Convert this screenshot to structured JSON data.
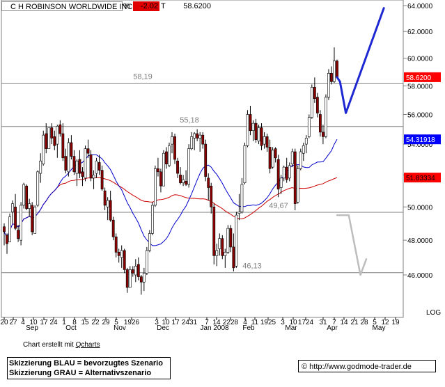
{
  "header": {
    "name": "C H ROBINSON WORLDWIDE INC",
    "pct_label": "%",
    "pct_value": "-2.02",
    "t_label": "T",
    "price": "58.6200"
  },
  "chart_data": {
    "type": "candlestick",
    "y_axis": {
      "side": "right",
      "ylim": [
        43.5,
        64.5
      ],
      "ticks": [
        "64.0000",
        "62.0000",
        "60.0000",
        "58.0000",
        "56.0000",
        "54.0000",
        "52.0000",
        "50.0000",
        "48.0000",
        "46.0000"
      ],
      "scale_label": "LOG",
      "grid": false
    },
    "x_axis": {
      "day_ticks": [
        "20",
        "27",
        "4",
        "10",
        "17",
        "24",
        "1",
        "8",
        "15",
        "22",
        "29",
        "5",
        "1926",
        "3",
        "10",
        "17",
        "2431",
        "7",
        "14",
        "2228",
        "4",
        "11",
        "1925",
        "3",
        "10",
        "1724",
        "31",
        "7",
        "14",
        "21",
        "28",
        "5",
        "12",
        "19"
      ],
      "month_labels": [
        "Sep",
        "Oct",
        "Nov",
        "Dec",
        "Jan 2008",
        "Feb",
        "Mar",
        "Apr",
        "May"
      ]
    },
    "levels": [
      {
        "value": 58.19,
        "label": "58,19"
      },
      {
        "value": 55.18,
        "label": "55,18"
      },
      {
        "value": 49.67,
        "label": "49,67"
      },
      {
        "value": 46.13,
        "label": "46,13"
      }
    ],
    "price_tags": [
      {
        "value": 58.62,
        "label": "58.6200",
        "bg": "#ff0000",
        "fg": "#ffffff"
      },
      {
        "value": 54.31918,
        "label": "54.31918",
        "bg": "#0000ff",
        "fg": "#ffffff"
      },
      {
        "value": 51.83334,
        "label": "51.83334",
        "bg": "#ff0000",
        "fg": "#000000"
      }
    ],
    "ohlc": [
      [
        48.8,
        49.0,
        47.7,
        48.5
      ],
      [
        48.3,
        48.4,
        47.2,
        47.8
      ],
      [
        47.9,
        49.6,
        47.9,
        49.4
      ],
      [
        49.7,
        50.4,
        49.0,
        50.2
      ],
      [
        50.0,
        50.8,
        48.6,
        48.7
      ],
      [
        48.6,
        48.9,
        47.9,
        48.1
      ],
      [
        48.0,
        50.3,
        47.7,
        50.1
      ],
      [
        50.1,
        51.5,
        49.9,
        51.4
      ],
      [
        51.3,
        51.4,
        49.8,
        49.9
      ],
      [
        49.9,
        50.5,
        49.4,
        50.2
      ],
      [
        50.1,
        50.3,
        48.3,
        48.5
      ],
      [
        48.4,
        50.1,
        48.4,
        50.0
      ],
      [
        50.1,
        52.3,
        50.0,
        52.2
      ],
      [
        52.1,
        53.4,
        51.5,
        52.9
      ],
      [
        52.7,
        54.9,
        52.6,
        54.6
      ],
      [
        54.7,
        55.4,
        53.4,
        53.7
      ],
      [
        53.7,
        55.1,
        53.7,
        55.1
      ],
      [
        55.1,
        55.4,
        54.0,
        54.4
      ],
      [
        54.5,
        54.9,
        53.6,
        53.9
      ],
      [
        54.0,
        55.3,
        53.1,
        55.2
      ],
      [
        55.3,
        55.6,
        54.5,
        54.7
      ],
      [
        54.7,
        55.4,
        52.9,
        53.1
      ],
      [
        53.2,
        53.7,
        52.1,
        52.3
      ],
      [
        52.2,
        54.4,
        51.9,
        54.1
      ],
      [
        54.1,
        54.6,
        53.0,
        53.2
      ],
      [
        53.2,
        53.6,
        52.0,
        52.2
      ],
      [
        52.1,
        53.0,
        51.3,
        52.9
      ],
      [
        53.0,
        53.6,
        51.8,
        52.1
      ],
      [
        52.2,
        52.5,
        51.3,
        51.9
      ],
      [
        51.8,
        53.9,
        51.6,
        53.7
      ],
      [
        53.7,
        54.3,
        53.1,
        53.4
      ],
      [
        53.3,
        53.6,
        51.6,
        51.8
      ],
      [
        51.8,
        52.3,
        51.1,
        52.0
      ],
      [
        52.1,
        53.1,
        51.8,
        52.9
      ],
      [
        52.8,
        53.3,
        52.0,
        52.3
      ],
      [
        52.3,
        52.6,
        51.0,
        51.1
      ],
      [
        51.0,
        51.2,
        49.8,
        50.1
      ],
      [
        50.0,
        50.6,
        49.2,
        50.4
      ],
      [
        50.4,
        51.0,
        49.1,
        49.2
      ],
      [
        49.2,
        49.4,
        48.0,
        48.2
      ],
      [
        48.2,
        48.4,
        47.0,
        47.3
      ],
      [
        47.3,
        47.5,
        46.7,
        47.1
      ],
      [
        47.0,
        47.7,
        46.4,
        47.4
      ],
      [
        47.4,
        47.5,
        46.1,
        46.3
      ],
      [
        46.3,
        46.4,
        45.0,
        45.3
      ],
      [
        45.3,
        46.5,
        45.3,
        46.3
      ],
      [
        46.3,
        46.5,
        45.9,
        46.1
      ],
      [
        46.0,
        46.9,
        45.6,
        46.5
      ],
      [
        46.6,
        47.0,
        45.7,
        45.9
      ],
      [
        45.9,
        46.0,
        44.9,
        45.6
      ],
      [
        45.6,
        46.4,
        45.1,
        46.1
      ],
      [
        46.1,
        47.6,
        46.0,
        47.4
      ],
      [
        47.4,
        48.6,
        47.3,
        48.4
      ],
      [
        48.4,
        50.3,
        48.3,
        50.1
      ],
      [
        50.1,
        52.6,
        50.0,
        52.4
      ],
      [
        52.4,
        53.1,
        51.9,
        52.2
      ],
      [
        52.2,
        52.4,
        50.9,
        51.3
      ],
      [
        51.3,
        53.6,
        51.3,
        53.4
      ],
      [
        53.5,
        53.8,
        52.4,
        52.7
      ],
      [
        52.6,
        54.1,
        52.5,
        53.9
      ],
      [
        54.0,
        54.8,
        53.4,
        54.5
      ],
      [
        54.5,
        54.7,
        52.7,
        53.0
      ],
      [
        52.9,
        53.1,
        51.8,
        52.1
      ],
      [
        52.0,
        52.5,
        51.4,
        51.5
      ],
      [
        51.5,
        52.0,
        51.3,
        51.7
      ],
      [
        51.6,
        52.3,
        51.3,
        51.4
      ],
      [
        51.4,
        54.0,
        51.2,
        53.7
      ],
      [
        53.7,
        54.8,
        53.6,
        54.5
      ],
      [
        54.4,
        54.8,
        53.6,
        54.7
      ],
      [
        54.7,
        55.0,
        54.2,
        54.4
      ],
      [
        54.4,
        54.8,
        53.5,
        54.6
      ],
      [
        54.6,
        54.8,
        53.7,
        54.0
      ],
      [
        54.0,
        54.3,
        51.6,
        51.9
      ],
      [
        51.8,
        52.1,
        50.4,
        51.2
      ],
      [
        51.3,
        51.5,
        49.6,
        50.0
      ],
      [
        50.0,
        50.2,
        46.6,
        47.1
      ],
      [
        47.1,
        47.8,
        46.5,
        47.4
      ],
      [
        47.5,
        48.4,
        47.1,
        48.1
      ],
      [
        48.1,
        48.3,
        46.9,
        47.1
      ],
      [
        47.1,
        47.5,
        46.4,
        47.3
      ],
      [
        47.3,
        48.9,
        47.2,
        48.7
      ],
      [
        48.7,
        48.9,
        47.3,
        47.6
      ],
      [
        47.6,
        48.4,
        46.2,
        46.4
      ],
      [
        46.5,
        49.7,
        46.4,
        49.5
      ],
      [
        49.6,
        50.8,
        49.2,
        49.7
      ],
      [
        49.7,
        51.8,
        49.6,
        51.4
      ],
      [
        51.5,
        54.1,
        51.4,
        53.9
      ],
      [
        53.9,
        56.3,
        53.8,
        56.0
      ],
      [
        56.0,
        56.6,
        54.6,
        54.9
      ],
      [
        54.9,
        55.6,
        54.2,
        55.4
      ],
      [
        55.4,
        55.7,
        54.1,
        54.3
      ],
      [
        54.2,
        55.3,
        54.0,
        55.1
      ],
      [
        55.1,
        55.4,
        53.6,
        53.9
      ],
      [
        54.0,
        54.8,
        53.7,
        54.5
      ],
      [
        54.5,
        54.7,
        53.5,
        53.8
      ],
      [
        53.8,
        54.3,
        52.1,
        52.4
      ],
      [
        52.5,
        53.8,
        52.4,
        53.6
      ],
      [
        53.7,
        53.8,
        52.8,
        53.1
      ],
      [
        53.0,
        53.3,
        50.6,
        51.1
      ],
      [
        51.2,
        52.0,
        50.8,
        51.8
      ],
      [
        51.8,
        52.6,
        51.6,
        52.5
      ],
      [
        52.5,
        53.1,
        51.5,
        51.7
      ],
      [
        51.8,
        52.8,
        51.6,
        52.6
      ],
      [
        52.7,
        53.7,
        52.5,
        53.5
      ],
      [
        53.5,
        53.7,
        49.8,
        50.2
      ],
      [
        50.3,
        52.6,
        50.2,
        52.4
      ],
      [
        52.4,
        53.7,
        52.3,
        53.5
      ],
      [
        53.4,
        54.1,
        52.9,
        53.9
      ],
      [
        54.0,
        54.6,
        53.4,
        54.4
      ],
      [
        54.5,
        56.0,
        54.4,
        55.8
      ],
      [
        55.8,
        58.1,
        55.7,
        57.9
      ],
      [
        57.9,
        58.6,
        56.8,
        57.1
      ],
      [
        57.2,
        57.5,
        55.8,
        56.1
      ],
      [
        56.0,
        56.3,
        54.5,
        54.8
      ],
      [
        54.8,
        55.3,
        54.0,
        54.5
      ],
      [
        54.5,
        57.4,
        54.4,
        57.2
      ],
      [
        57.2,
        59.2,
        57.0,
        58.9
      ],
      [
        58.9,
        59.4,
        58.1,
        58.3
      ],
      [
        58.3,
        60.8,
        58.2,
        59.8
      ],
      [
        59.8,
        59.9,
        58.5,
        58.6
      ]
    ],
    "ma_blue_endpoints": [
      54.32
    ],
    "ma_red_endpoints": [
      51.83
    ],
    "scenario_blue": [
      [
        58.62,
        0
      ],
      [
        58.3,
        1
      ],
      [
        56.1,
        3
      ],
      [
        63.8,
        16
      ]
    ],
    "scenario_grey": [
      [
        49.5,
        0
      ],
      [
        49.5,
        4
      ],
      [
        46.0,
        8
      ],
      [
        46.9,
        10
      ]
    ]
  },
  "footer": {
    "credit_prefix": "Chart erstellt mit ",
    "credit_link": "Qcharts",
    "legend_blue": "Skizzierung BLAU = bevorzugtes Szenario",
    "legend_grey": "Skizzierung GRAU = Alternativszenario",
    "url": "© http://www.godmode-trader.de"
  }
}
